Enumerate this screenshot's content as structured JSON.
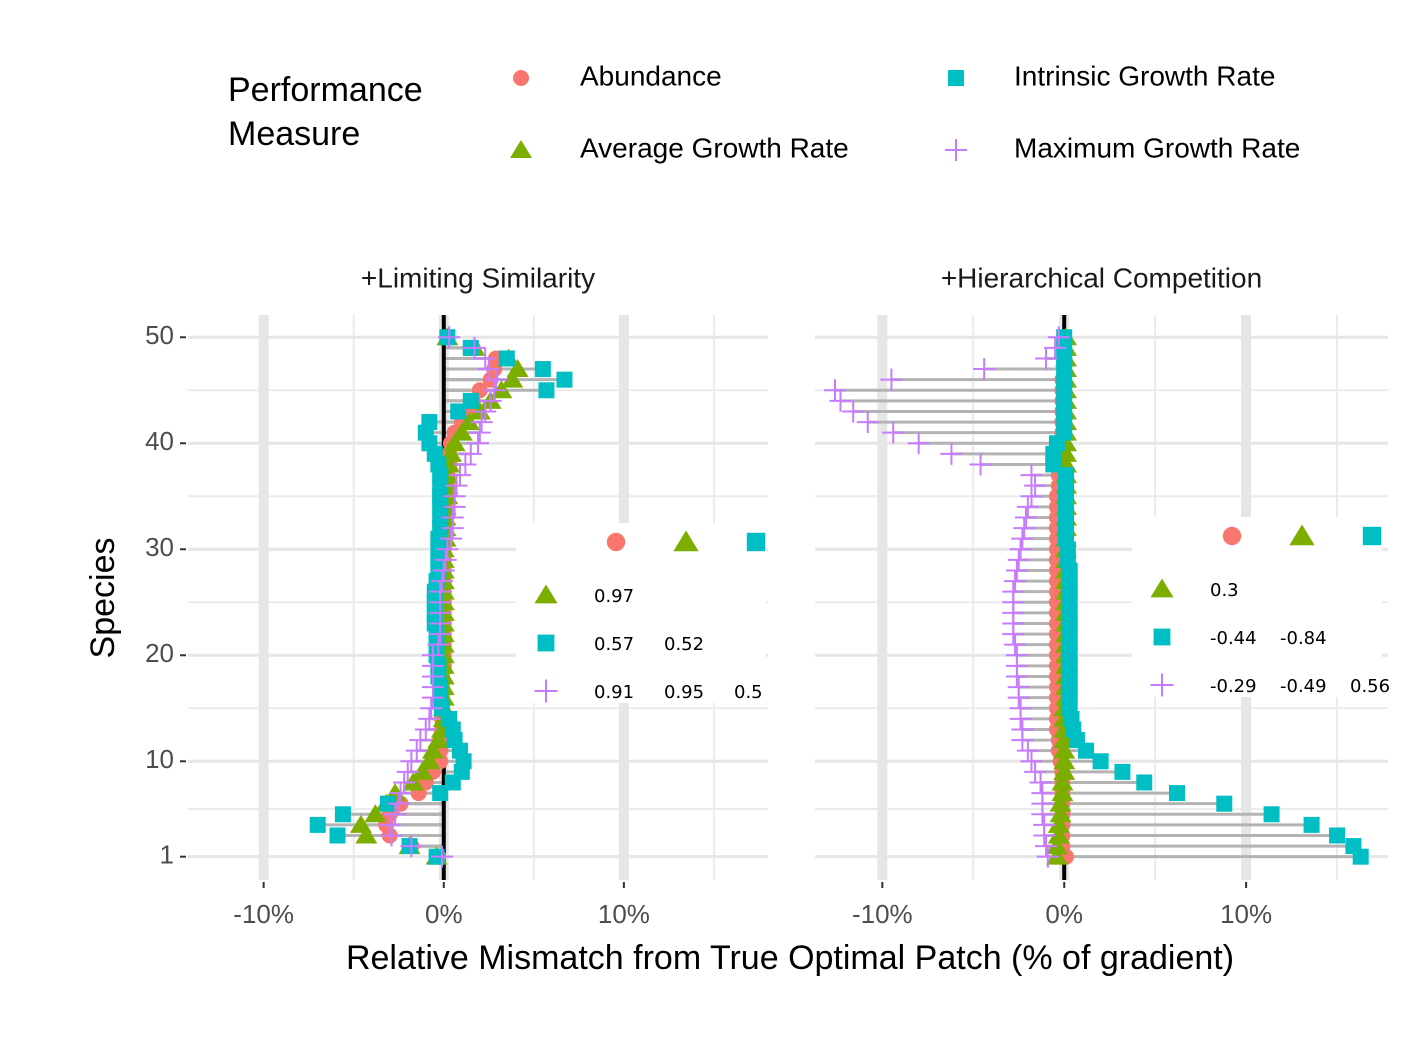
{
  "chart_data": {
    "type": "lollipop",
    "x_label": "Relative Mismatch from True Optimal Patch (% of gradient)",
    "y_label": "Species",
    "legend_title": [
      "Performance",
      "Measure"
    ],
    "series": [
      {
        "name": "Abundance",
        "color": "#F8766D",
        "marker": "circle"
      },
      {
        "name": "Average Growth Rate",
        "color": "#7CAE00",
        "marker": "triangle"
      },
      {
        "name": "Intrinsic Growth Rate",
        "color": "#00BFC4",
        "marker": "square"
      },
      {
        "name": "Maximum Growth Rate",
        "color": "#C77CFF",
        "marker": "plus"
      }
    ],
    "species": [
      1,
      2,
      3,
      4,
      5,
      6,
      7,
      8,
      9,
      10,
      11,
      12,
      13,
      14,
      15,
      16,
      17,
      18,
      19,
      20,
      21,
      22,
      23,
      24,
      25,
      26,
      27,
      28,
      29,
      30,
      31,
      32,
      33,
      34,
      35,
      36,
      37,
      38,
      39,
      40,
      41,
      42,
      43,
      44,
      45,
      46,
      47,
      48,
      49,
      50
    ],
    "ylim": [
      -1.2,
      52.1
    ],
    "yticks": [
      1,
      10,
      20,
      30,
      40,
      50
    ],
    "vline": 0,
    "grid": true,
    "facets": [
      {
        "title": "+Limiting Similarity",
        "xlim": [
          -14.2,
          18.0
        ],
        "xticks": [
          {
            "value": -10,
            "label": "-10%"
          },
          {
            "value": 0,
            "label": "0%"
          },
          {
            "value": 10,
            "label": "10%"
          }
        ],
        "series": [
          {
            "values": [
              -0.3,
              -1.8,
              -3.0,
              -3.2,
              -3.0,
              -2.4,
              -1.4,
              -1.0,
              -0.6,
              -0.2,
              -0.2,
              -0.2,
              -0.1,
              -0.1,
              -0.1,
              -0.1,
              -0.1,
              -0.1,
              0,
              0,
              0,
              0,
              0,
              0,
              0,
              0,
              0,
              0,
              0,
              0,
              0,
              0.1,
              0.1,
              0.1,
              0.2,
              0.2,
              0.2,
              0.3,
              0.3,
              0.4,
              0.6,
              1.0,
              1.4,
              1.6,
              2.0,
              2.6,
              2.8,
              2.9,
              1.6,
              0.2
            ]
          },
          {
            "values": [
              -0.4,
              -1.9,
              -4.3,
              -4.6,
              -3.8,
              -3.2,
              -2.7,
              -1.7,
              -1.2,
              -0.8,
              -0.6,
              -0.3,
              -0.1,
              0,
              0,
              0,
              0,
              0,
              0,
              0,
              0,
              0,
              0,
              0,
              0,
              0,
              0,
              0,
              0,
              0,
              0.1,
              0.1,
              0.1,
              0.1,
              0.2,
              0.2,
              0.2,
              0.3,
              0.4,
              0.6,
              1.0,
              1.4,
              2.0,
              2.6,
              3.2,
              3.8,
              4.1,
              3.6,
              1.7,
              0.2
            ]
          },
          {
            "values": [
              -0.4,
              -1.9,
              -5.9,
              -7.0,
              -5.6,
              -3.1,
              -0.2,
              0.5,
              1.0,
              1.1,
              0.9,
              0.6,
              0.5,
              0.3,
              -0.1,
              -0.2,
              -0.2,
              -0.3,
              -0.3,
              -0.4,
              -0.4,
              -0.4,
              -0.5,
              -0.5,
              -0.5,
              -0.5,
              -0.4,
              -0.3,
              -0.3,
              -0.3,
              -0.3,
              -0.2,
              -0.2,
              -0.2,
              -0.2,
              -0.2,
              -0.2,
              -0.3,
              -0.5,
              -0.8,
              -1.0,
              -0.8,
              0.8,
              1.5,
              5.7,
              6.7,
              5.5,
              3.5,
              1.5,
              0.2
            ]
          },
          {
            "values": [
              -0.1,
              -1.8,
              -2.9,
              -3.0,
              -2.7,
              -2.5,
              -2.4,
              -2.2,
              -2.0,
              -1.8,
              -1.5,
              -1.3,
              -1.0,
              -0.8,
              -0.7,
              -0.6,
              -0.6,
              -0.6,
              -0.6,
              -0.6,
              -0.3,
              -0.2,
              -0.2,
              -0.2,
              -0.2,
              -0.2,
              -0.1,
              0,
              0.1,
              0.2,
              0.4,
              0.5,
              0.5,
              0.6,
              0.6,
              0.7,
              0.9,
              1.2,
              1.5,
              1.9,
              2.0,
              2.1,
              2.3,
              2.6,
              2.8,
              2.9,
              2.5,
              2.3,
              1.7,
              0.3
            ]
          }
        ],
        "correlations": [
          [
            0.97
          ],
          [
            0.57,
            0.52
          ],
          [
            0.91,
            0.95,
            0.5
          ]
        ]
      },
      {
        "title": "+Hierarchical Competition",
        "xlim": [
          -13.7,
          17.8
        ],
        "xticks": [
          {
            "value": -10,
            "label": "-10%"
          },
          {
            "value": 0,
            "label": "0%"
          },
          {
            "value": 10,
            "label": "10%"
          }
        ],
        "series": [
          {
            "values": [
              0.1,
              -0.1,
              -0.1,
              -0.1,
              -0.1,
              -0.1,
              -0.1,
              -0.1,
              -0.1,
              -0.2,
              -0.3,
              -0.3,
              -0.4,
              -0.4,
              -0.4,
              -0.4,
              -0.4,
              -0.4,
              -0.4,
              -0.4,
              -0.4,
              -0.4,
              -0.4,
              -0.4,
              -0.4,
              -0.4,
              -0.4,
              -0.4,
              -0.4,
              -0.4,
              -0.4,
              -0.4,
              -0.4,
              -0.4,
              -0.4,
              -0.3,
              -0.3,
              -0.3,
              -0.3,
              -0.2,
              -0.1,
              -0.1,
              -0.1,
              -0.1,
              -0.1,
              -0.1,
              0,
              0,
              0,
              0
            ]
          },
          {
            "values": [
              -0.4,
              -0.4,
              -0.3,
              -0.3,
              -0.2,
              -0.2,
              -0.1,
              -0.1,
              0,
              0,
              0,
              0,
              0,
              0,
              0,
              0.1,
              0.1,
              0.1,
              0.1,
              0.1,
              0.1,
              0.1,
              0.1,
              0.1,
              0.1,
              0.1,
              0.1,
              0.1,
              0.1,
              0.1,
              0.1,
              0.1,
              0.1,
              0.1,
              0.1,
              0.1,
              0.1,
              0.1,
              0.1,
              0.1,
              0.1,
              0.1,
              0.1,
              0.1,
              0.1,
              0.1,
              0.1,
              0.1,
              0.1,
              0.1
            ]
          },
          {
            "values": [
              16.3,
              15.9,
              15.0,
              13.6,
              11.4,
              8.8,
              6.2,
              4.4,
              3.2,
              2.0,
              1.2,
              0.7,
              0.5,
              0.4,
              0.3,
              0.3,
              0.3,
              0.3,
              0.3,
              0.3,
              0.3,
              0.3,
              0.3,
              0.3,
              0.3,
              0.3,
              0.3,
              0.3,
              0.2,
              0.2,
              0.1,
              0.1,
              0.1,
              0.1,
              0.1,
              0.1,
              0.1,
              -0.6,
              -0.6,
              -0.4,
              0,
              0,
              0,
              0,
              0,
              0,
              0,
              0,
              0,
              0
            ]
          },
          {
            "values": [
              -0.9,
              -1.0,
              -1.1,
              -1.1,
              -1.2,
              -1.2,
              -1.2,
              -1.3,
              -1.6,
              -1.8,
              -2.0,
              -2.3,
              -2.3,
              -2.4,
              -2.4,
              -2.5,
              -2.5,
              -2.6,
              -2.6,
              -2.6,
              -2.7,
              -2.8,
              -2.8,
              -2.8,
              -2.8,
              -2.8,
              -2.7,
              -2.6,
              -2.5,
              -2.4,
              -2.3,
              -2.2,
              -2.1,
              -2.0,
              -1.8,
              -1.6,
              -1.8,
              -4.6,
              -6.2,
              -8.0,
              -9.4,
              -10.8,
              -11.6,
              -12.3,
              -12.6,
              -9.5,
              -4.4,
              -1.0,
              -0.5,
              -0.3
            ]
          }
        ],
        "correlations": [
          [
            0.3
          ],
          [
            -0.44,
            -0.84
          ],
          [
            -0.29,
            -0.49,
            0.56
          ]
        ]
      }
    ]
  }
}
